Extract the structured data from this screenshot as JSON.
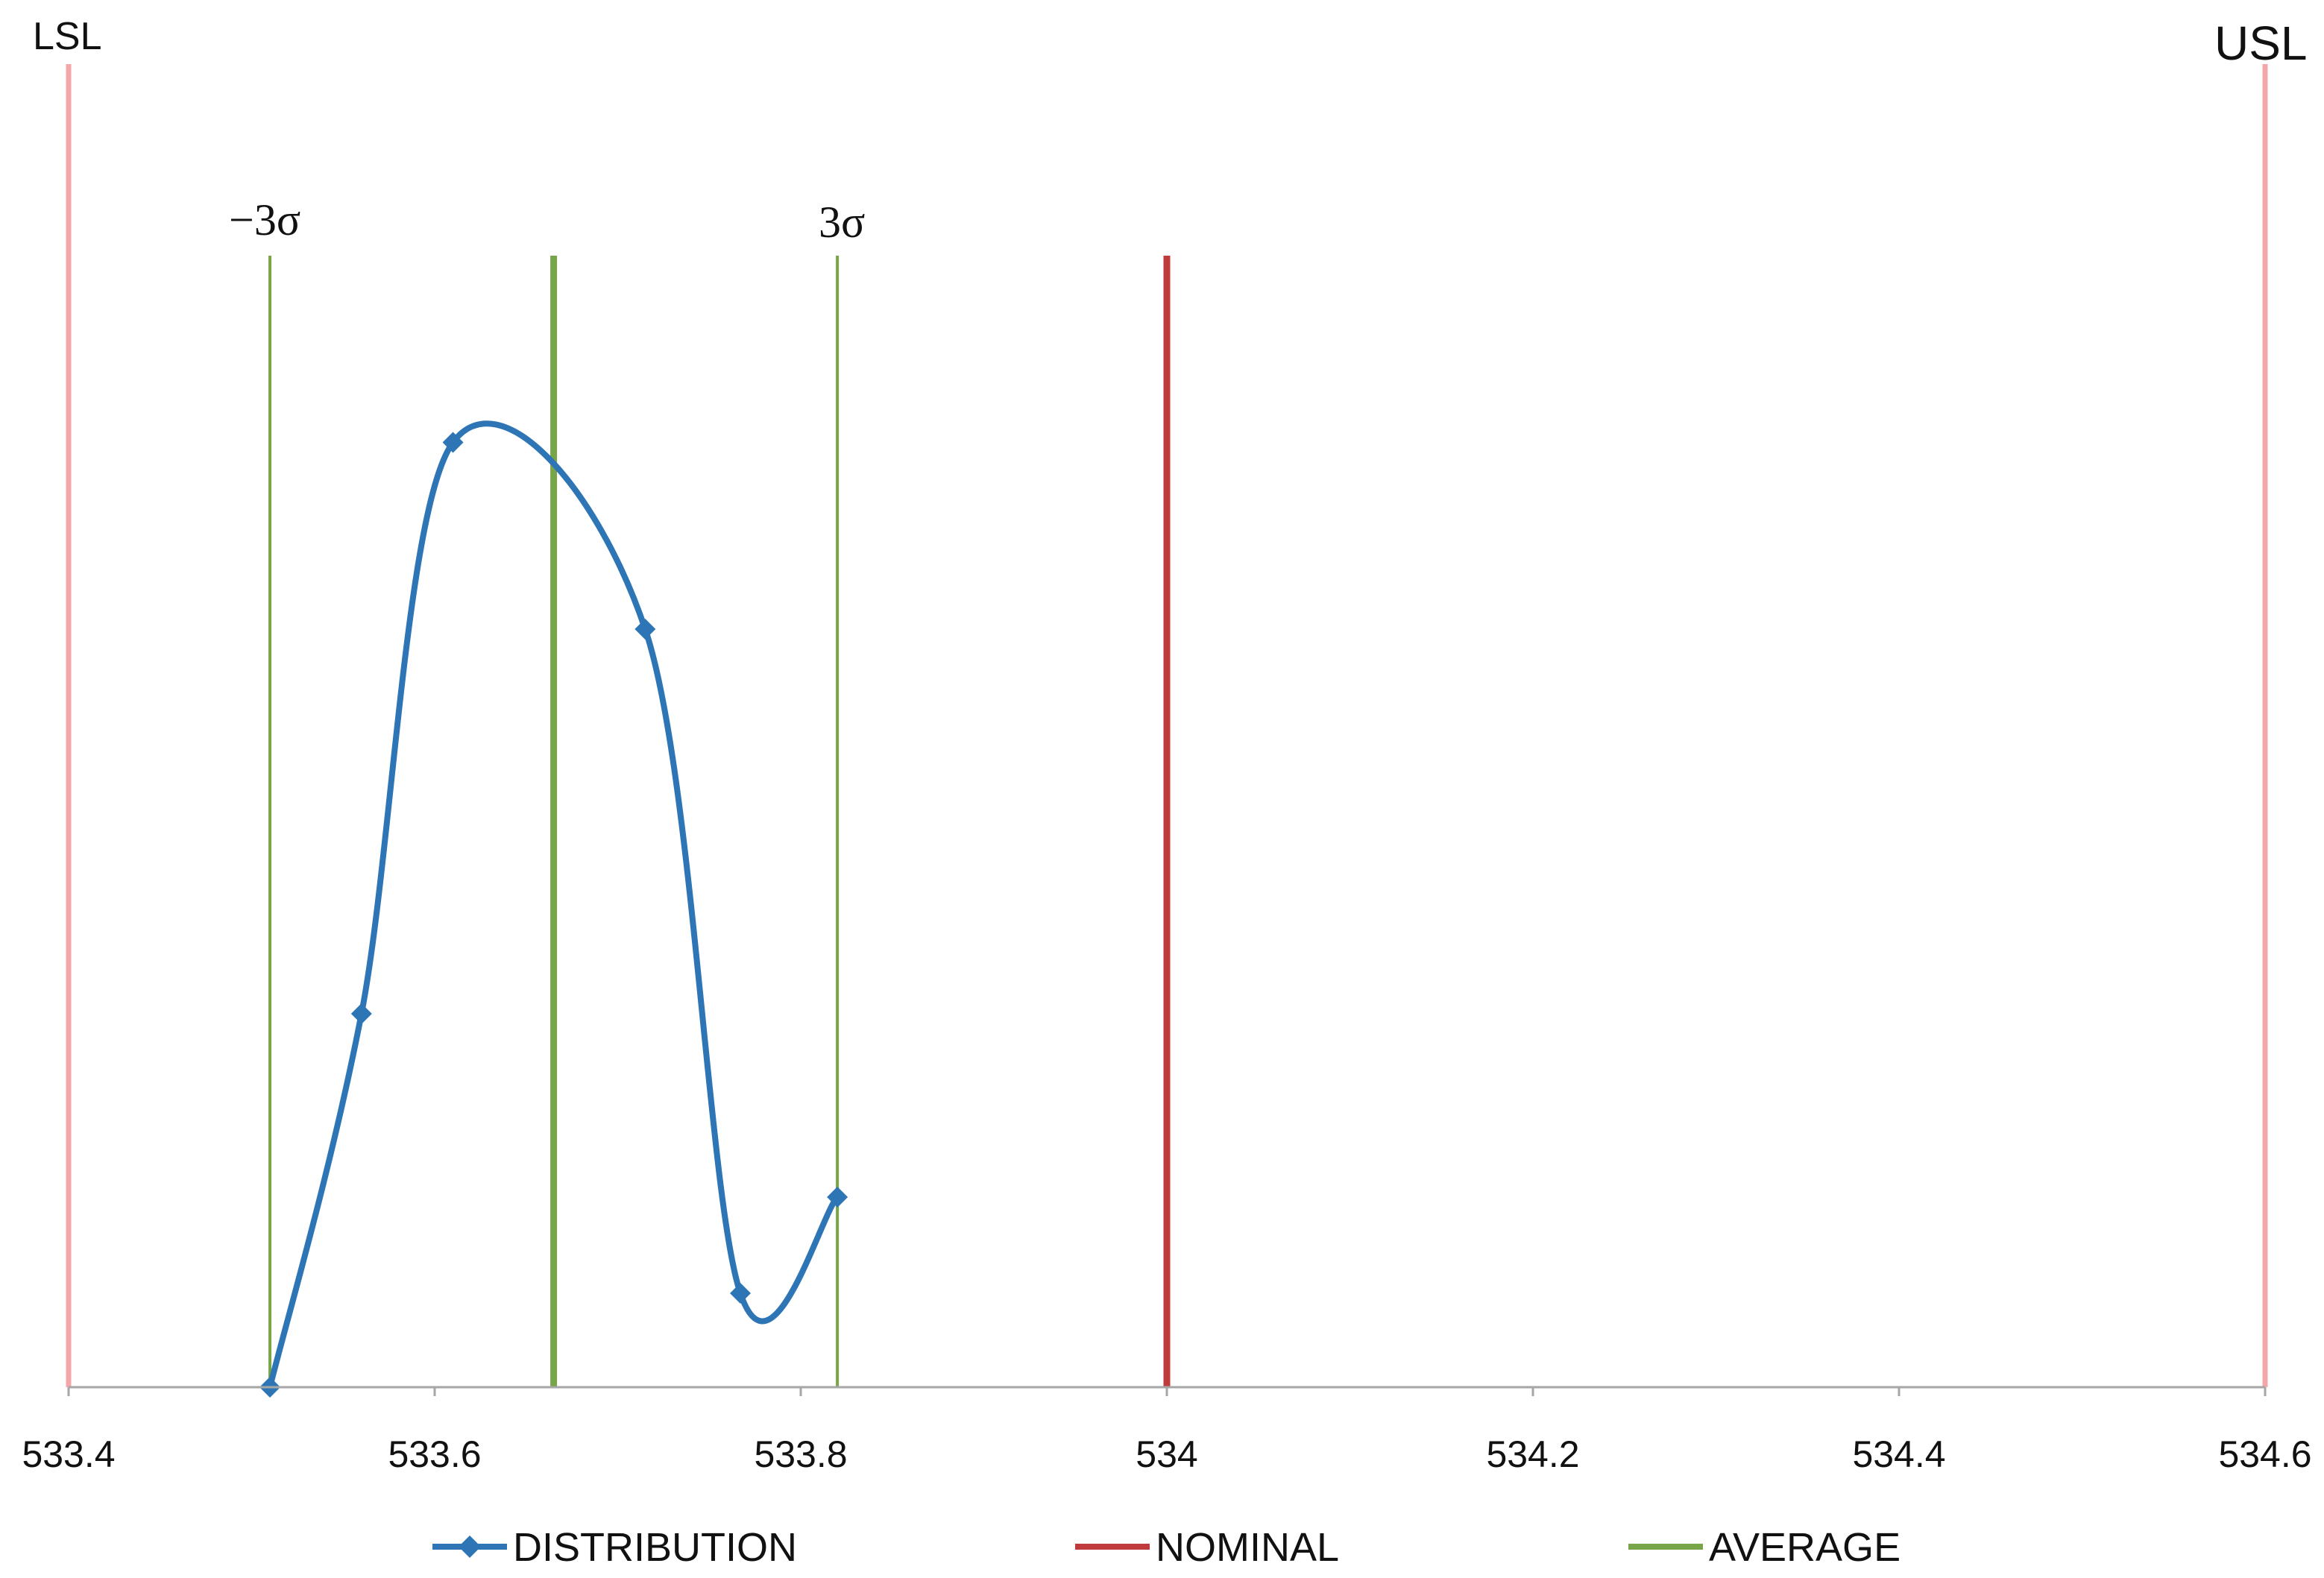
{
  "chart_data": {
    "type": "line",
    "xlim": [
      533.4,
      534.6
    ],
    "x_ticks": [
      "533.4",
      "533.6",
      "533.8",
      "534",
      "534.2",
      "534.4",
      "534.6"
    ],
    "y_ticks": [],
    "grid": false,
    "legend_position": "bottom",
    "series": [
      {
        "name": "DISTRIBUTION",
        "color": "#2E75B6",
        "marker": "diamond",
        "smooth": true,
        "points": [
          {
            "x": 533.51,
            "y": 0.0
          },
          {
            "x": 533.56,
            "y": 0.33
          },
          {
            "x": 533.61,
            "y": 0.835
          },
          {
            "x": 533.715,
            "y": 0.67
          },
          {
            "x": 533.767,
            "y": 0.083
          },
          {
            "x": 533.82,
            "y": 0.168
          }
        ]
      }
    ],
    "reference_lines": [
      {
        "name": "LSL",
        "label": "LSL",
        "x": 533.4,
        "color": "#F4A7A9",
        "legend": false
      },
      {
        "name": "USL",
        "label": "USL",
        "x": 534.6,
        "color": "#F4A7A9",
        "legend": false
      },
      {
        "name": "-3σ",
        "label": "−3σ",
        "x": 533.51,
        "color": "#77A548",
        "legend": false
      },
      {
        "name": "3σ",
        "label": "3σ",
        "x": 533.82,
        "color": "#77A548",
        "legend": false
      },
      {
        "name": "AVERAGE",
        "x": 533.665,
        "color": "#77A548",
        "legend": true
      },
      {
        "name": "NOMINAL",
        "x": 534.0,
        "color": "#C0393B",
        "legend": true
      }
    ],
    "legend": [
      {
        "label": "DISTRIBUTION",
        "color": "#2E75B6",
        "marker": "diamond"
      },
      {
        "label": "NOMINAL",
        "color": "#C0393B",
        "marker": "none"
      },
      {
        "label": "AVERAGE",
        "color": "#77A548",
        "marker": "none"
      }
    ]
  }
}
